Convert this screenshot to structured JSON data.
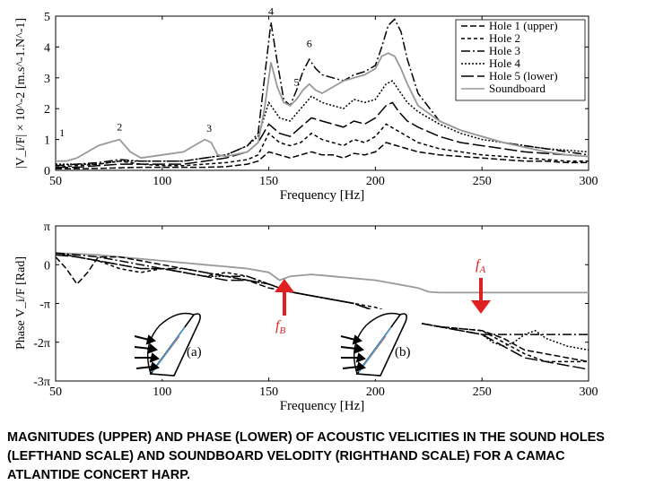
{
  "caption": "MAGNITUDES (UPPER) AND PHASE (LOWER) OF ACOUSTIC VELICITIES IN THE SOUND HOLES (LEFTHAND SCALE) AND SOUNDBOARD VELODITY (RIGHTHAND SCALE) FOR A CAMAC ATLANTIDE CONCERT HARP.",
  "chart_data": [
    {
      "type": "line",
      "xlabel": "Frequency [Hz]",
      "ylabel": "|V_i/F| × 10^-2 [m.s^-1.N^-1]",
      "xlim": [
        50,
        300
      ],
      "ylim": [
        0,
        5
      ],
      "xticks": [
        "50",
        "100",
        "150",
        "200",
        "250",
        "300"
      ],
      "yticks": [
        "0",
        "1",
        "2",
        "3",
        "4",
        "5"
      ],
      "legend_position": "top-right",
      "legend": [
        "Hole 1 (upper)",
        "Hole 2",
        "Hole 3",
        "Hole 4",
        "Hole 5 (lower)",
        "Soundboard"
      ],
      "peak_labels": [
        {
          "text": "1",
          "x": 53,
          "y": 1.1
        },
        {
          "text": "2",
          "x": 80,
          "y": 1.3
        },
        {
          "text": "3",
          "x": 122,
          "y": 1.25
        },
        {
          "text": "4",
          "x": 151,
          "y": 5.05
        },
        {
          "text": "5",
          "x": 163,
          "y": 2.75
        },
        {
          "text": "6",
          "x": 169,
          "y": 4.0
        }
      ],
      "series": [
        {
          "name": "Hole 1 (upper)",
          "color": "#000000",
          "dash": "7,3",
          "x": [
            50,
            60,
            70,
            80,
            90,
            100,
            110,
            120,
            130,
            140,
            145,
            150,
            155,
            160,
            165,
            170,
            175,
            180,
            185,
            190,
            195,
            200,
            205,
            210,
            220,
            230,
            240,
            250,
            260,
            270,
            280,
            290,
            300
          ],
          "y": [
            0.05,
            0.05,
            0.06,
            0.08,
            0.1,
            0.1,
            0.1,
            0.1,
            0.12,
            0.2,
            0.3,
            0.6,
            0.5,
            0.4,
            0.5,
            0.6,
            0.5,
            0.5,
            0.4,
            0.55,
            0.5,
            0.6,
            0.9,
            0.8,
            0.6,
            0.5,
            0.45,
            0.4,
            0.35,
            0.3,
            0.3,
            0.25,
            0.25
          ]
        },
        {
          "name": "Hole 2",
          "color": "#000000",
          "dash": "4,3",
          "x": [
            50,
            60,
            70,
            80,
            90,
            100,
            110,
            120,
            130,
            140,
            145,
            150,
            155,
            160,
            165,
            170,
            175,
            180,
            185,
            190,
            195,
            200,
            205,
            210,
            220,
            230,
            240,
            250,
            260,
            270,
            280,
            290,
            300
          ],
          "y": [
            0.1,
            0.15,
            0.2,
            0.3,
            0.2,
            0.15,
            0.15,
            0.2,
            0.25,
            0.35,
            0.5,
            1.2,
            0.9,
            0.8,
            0.9,
            1.2,
            1.0,
            0.9,
            0.8,
            1.0,
            0.9,
            1.1,
            1.5,
            1.3,
            0.9,
            0.7,
            0.6,
            0.5,
            0.45,
            0.4,
            0.35,
            0.3,
            0.3
          ]
        },
        {
          "name": "Hole 3",
          "color": "#000000",
          "dash": "10,3,2,3",
          "x": [
            50,
            60,
            70,
            80,
            90,
            100,
            110,
            120,
            130,
            140,
            145,
            148,
            151,
            154,
            157,
            160,
            163,
            166,
            169,
            172,
            175,
            180,
            185,
            190,
            195,
            200,
            203,
            206,
            209,
            212,
            215,
            220,
            230,
            240,
            250,
            260,
            270,
            280,
            290,
            300
          ],
          "y": [
            0.15,
            0.2,
            0.25,
            0.35,
            0.3,
            0.3,
            0.3,
            0.4,
            0.5,
            0.8,
            1.2,
            3.0,
            4.8,
            3.5,
            2.3,
            2.1,
            2.6,
            3.2,
            3.6,
            3.3,
            3.1,
            3.0,
            2.9,
            3.1,
            3.2,
            3.4,
            4.0,
            4.7,
            4.9,
            4.5,
            3.6,
            2.5,
            1.6,
            1.3,
            1.1,
            0.9,
            0.8,
            0.7,
            0.6,
            0.5
          ]
        },
        {
          "name": "Hole 4",
          "color": "#000000",
          "dash": "2,2",
          "x": [
            50,
            60,
            70,
            80,
            90,
            100,
            110,
            120,
            130,
            140,
            145,
            150,
            155,
            160,
            165,
            170,
            175,
            180,
            185,
            190,
            195,
            200,
            205,
            208,
            211,
            215,
            220,
            230,
            240,
            250,
            260,
            270,
            280,
            290,
            300
          ],
          "y": [
            0.2,
            0.2,
            0.2,
            0.3,
            0.3,
            0.3,
            0.3,
            0.4,
            0.5,
            0.8,
            1.1,
            2.2,
            1.7,
            1.6,
            2.0,
            2.4,
            2.2,
            2.1,
            2.0,
            2.3,
            2.2,
            2.3,
            2.8,
            2.9,
            2.6,
            2.2,
            1.9,
            1.5,
            1.2,
            1.0,
            0.9,
            0.8,
            0.7,
            0.65,
            0.6
          ]
        },
        {
          "name": "Hole 5 (lower)",
          "color": "#000000",
          "dash": "14,4",
          "x": [
            50,
            60,
            70,
            80,
            90,
            100,
            110,
            120,
            130,
            140,
            145,
            150,
            155,
            160,
            165,
            170,
            175,
            180,
            185,
            190,
            195,
            200,
            205,
            208,
            211,
            215,
            220,
            230,
            240,
            250,
            260,
            270,
            280,
            290,
            300
          ],
          "y": [
            0.1,
            0.1,
            0.15,
            0.2,
            0.2,
            0.2,
            0.2,
            0.3,
            0.4,
            0.6,
            0.9,
            1.5,
            1.2,
            1.1,
            1.4,
            1.7,
            1.6,
            1.5,
            1.4,
            1.6,
            1.5,
            1.7,
            2.1,
            2.2,
            1.9,
            1.6,
            1.4,
            1.1,
            0.9,
            0.8,
            0.7,
            0.6,
            0.55,
            0.5,
            0.45
          ]
        },
        {
          "name": "Soundboard",
          "color": "#999999",
          "dash": "",
          "x": [
            50,
            55,
            60,
            65,
            70,
            75,
            80,
            85,
            90,
            100,
            110,
            115,
            120,
            123,
            126,
            130,
            140,
            145,
            148,
            151,
            154,
            157,
            160,
            163,
            166,
            169,
            172,
            175,
            180,
            185,
            190,
            195,
            200,
            203,
            206,
            209,
            212,
            215,
            220,
            230,
            240,
            250,
            260,
            270,
            280,
            290,
            300
          ],
          "y": [
            0.3,
            0.3,
            0.4,
            0.6,
            0.8,
            0.9,
            1.0,
            0.6,
            0.4,
            0.5,
            0.6,
            0.8,
            1.0,
            0.9,
            0.5,
            0.45,
            0.6,
            0.9,
            2.0,
            3.5,
            2.7,
            2.2,
            2.1,
            2.3,
            2.6,
            2.8,
            2.6,
            2.5,
            2.7,
            2.9,
            3.0,
            3.1,
            3.3,
            3.7,
            3.8,
            3.7,
            3.3,
            2.8,
            2.1,
            1.6,
            1.3,
            1.1,
            0.9,
            0.75,
            0.6,
            0.5,
            0.45
          ]
        }
      ]
    },
    {
      "type": "line",
      "xlabel": "Frequency [Hz]",
      "ylabel": "Phase V_i/F [Rad]",
      "xlim": [
        50,
        300
      ],
      "ylim": [
        -3,
        1
      ],
      "y_unit": "π rad",
      "xticks": [
        "50",
        "100",
        "150",
        "200",
        "250",
        "300"
      ],
      "yticks": [
        "π",
        "0",
        "-π",
        "-2π",
        "-3π"
      ],
      "annotations": [
        {
          "text": "f_A",
          "x": 250,
          "y": 0.0,
          "arrow": "down"
        },
        {
          "text": "f_B",
          "x": 157,
          "y": -1.2,
          "arrow": "up"
        }
      ],
      "inset_labels": [
        "(a)",
        "(b)"
      ],
      "series": [
        {
          "name": "Soundboard",
          "color": "#999999",
          "dash": "",
          "x": [
            50,
            60,
            70,
            80,
            90,
            100,
            110,
            120,
            130,
            140,
            150,
            155,
            160,
            170,
            180,
            190,
            200,
            210,
            220,
            225,
            230,
            240,
            250,
            260,
            270,
            280,
            290,
            300
          ],
          "y": [
            0.3,
            0.28,
            0.25,
            0.2,
            0.15,
            0.1,
            0.05,
            0.0,
            -0.05,
            -0.1,
            -0.2,
            -0.4,
            -0.3,
            -0.25,
            -0.3,
            -0.35,
            -0.4,
            -0.5,
            -0.6,
            -0.7,
            -0.72,
            -0.72,
            -0.72,
            -0.72,
            -0.72,
            -0.72,
            -0.72,
            -0.72
          ]
        },
        {
          "name": "Hole 1 (upper)",
          "color": "#000000",
          "dash": "7,3",
          "x": [
            50,
            55,
            60,
            65,
            70,
            80,
            90,
            100,
            110,
            120,
            130,
            140,
            150,
            160,
            170,
            180,
            190,
            200,
            210,
            220,
            230,
            240,
            250,
            260,
            270,
            280,
            290,
            300
          ],
          "y": [
            0.2,
            -0.1,
            -0.5,
            -0.2,
            0.2,
            0.2,
            0.1,
            0.0,
            -0.1,
            -0.2,
            -0.3,
            -0.4,
            -0.6,
            -0.7,
            -0.8,
            -0.9,
            -1.0,
            -1.2,
            -1.3,
            -1.5,
            -1.6,
            -1.65,
            -1.7,
            -1.9,
            -2.2,
            -2.3,
            -2.4,
            -2.5
          ]
        },
        {
          "name": "Hole 2",
          "color": "#000000",
          "dash": "4,3",
          "x": [
            50,
            60,
            70,
            80,
            90,
            100,
            110,
            120,
            130,
            140,
            150,
            160,
            170,
            180,
            190,
            200,
            210,
            220,
            230,
            240,
            250,
            260,
            270,
            280,
            290,
            300
          ],
          "y": [
            0.3,
            0.2,
            0.1,
            -0.1,
            -0.2,
            -0.1,
            -0.2,
            -0.3,
            -0.2,
            -0.3,
            -0.5,
            -0.7,
            -0.8,
            -0.9,
            -1.0,
            -1.1,
            -1.3,
            -1.5,
            -1.6,
            -1.65,
            -1.7,
            -2.0,
            -2.3,
            -2.5,
            -2.5,
            -2.5
          ]
        },
        {
          "name": "Hole 3",
          "color": "#000000",
          "dash": "10,3,2,3",
          "x": [
            50,
            60,
            70,
            80,
            90,
            100,
            110,
            120,
            130,
            140,
            150,
            160,
            170,
            180,
            190,
            200,
            210,
            220,
            230,
            240,
            250,
            260,
            270,
            280,
            290,
            300
          ],
          "y": [
            0.3,
            0.25,
            0.2,
            0.1,
            0.0,
            -0.1,
            -0.1,
            -0.2,
            -0.3,
            -0.3,
            -0.5,
            -0.7,
            -0.8,
            -0.9,
            -1.0,
            -1.2,
            -1.3,
            -1.5,
            -1.6,
            -1.7,
            -1.8,
            -1.8,
            -1.8,
            -1.8,
            -1.8,
            -1.8
          ]
        },
        {
          "name": "Hole 4",
          "color": "#000000",
          "dash": "2,2",
          "x": [
            50,
            60,
            70,
            80,
            90,
            100,
            110,
            120,
            130,
            140,
            150,
            160,
            170,
            180,
            190,
            200,
            210,
            220,
            230,
            240,
            250,
            255,
            260,
            265,
            270,
            275,
            280,
            290,
            300
          ],
          "y": [
            0.3,
            0.2,
            0.1,
            0.0,
            -0.1,
            -0.1,
            -0.2,
            -0.3,
            -0.3,
            -0.4,
            -0.5,
            -0.7,
            -0.8,
            -0.9,
            -1.0,
            -1.2,
            -1.3,
            -1.5,
            -1.6,
            -1.7,
            -1.8,
            -2.0,
            -2.1,
            -2.0,
            -1.8,
            -1.7,
            -1.9,
            -2.1,
            -2.2
          ]
        },
        {
          "name": "Hole 5 (lower)",
          "color": "#000000",
          "dash": "14,4",
          "x": [
            50,
            60,
            70,
            80,
            90,
            100,
            110,
            120,
            130,
            140,
            150,
            160,
            170,
            180,
            190,
            200,
            210,
            220,
            230,
            240,
            250,
            260,
            270,
            280,
            290,
            300
          ],
          "y": [
            0.25,
            0.2,
            0.1,
            0.0,
            -0.1,
            -0.1,
            -0.2,
            -0.3,
            -0.4,
            -0.4,
            -0.5,
            -0.7,
            -0.8,
            -0.9,
            -1.0,
            -1.2,
            -1.3,
            -1.5,
            -1.6,
            -1.7,
            -1.8,
            -2.1,
            -2.4,
            -2.5,
            -2.6,
            -2.7
          ]
        }
      ]
    }
  ]
}
